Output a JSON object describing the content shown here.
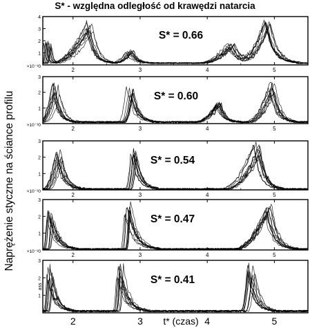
{
  "title": "S* - względna odległość od krawędzi natarcia",
  "ylabel": "Naprężenie styczne na ściance profilu",
  "xlabel": "t* (czas)",
  "chart_data": {
    "type": "line",
    "title": "S* - względna odległość od krawędzi natarcia",
    "ylabel": "Naprężenie styczne na ściance profilu",
    "xlabel": "t* (czas)",
    "xlim": [
      1.55,
      5.5
    ],
    "x_ticks": [
      "2",
      "3",
      "4",
      "5"
    ],
    "x_tick_values": [
      2,
      3,
      4,
      5
    ],
    "y_tick_values": [
      0,
      1,
      2,
      3
    ],
    "ylim": [
      0,
      3
    ],
    "panel_y_tick_labels": [
      "0",
      "1",
      "2",
      "3"
    ],
    "panel_y_unit_label": "×10⁻³",
    "bottom_y_axis_label": "ass",
    "panels": [
      {
        "label": "S* = 0.66",
        "y_ticks": [
          "0",
          "1",
          "2",
          "3",
          "4"
        ],
        "ylim": [
          0,
          4
        ],
        "peaks": [
          {
            "x": 1.62,
            "y": 2.0,
            "rise": 0.05,
            "width": 0.1
          },
          {
            "x": 2.25,
            "y": 3.4,
            "rise": 0.55,
            "width": 0.35
          },
          {
            "x": 2.85,
            "y": 1.0,
            "rise": 0.25,
            "width": 0.3
          },
          {
            "x": 4.35,
            "y": 1.6,
            "rise": 0.45,
            "width": 0.45
          },
          {
            "x": 4.9,
            "y": 3.3,
            "rise": 0.4,
            "width": 0.45
          }
        ],
        "base": 0.15
      },
      {
        "label": "S* = 0.60",
        "y_ticks": [
          "0",
          "1",
          "2",
          "3"
        ],
        "ylim": [
          0,
          3
        ],
        "peaks": [
          {
            "x": 1.75,
            "y": 2.4,
            "rise": 0.2,
            "width": 0.3
          },
          {
            "x": 2.85,
            "y": 2.3,
            "rise": 0.12,
            "width": 0.35
          },
          {
            "x": 4.15,
            "y": 1.2,
            "rise": 0.35,
            "width": 0.3
          },
          {
            "x": 4.95,
            "y": 2.5,
            "rise": 0.35,
            "width": 0.35
          }
        ],
        "base": 0.1
      },
      {
        "label": "S* = 0.54",
        "y_ticks": [
          "0",
          "1",
          "2",
          "3"
        ],
        "ylim": [
          0,
          3
        ],
        "peaks": [
          {
            "x": 1.8,
            "y": 2.3,
            "rise": 0.2,
            "width": 0.35
          },
          {
            "x": 2.9,
            "y": 2.3,
            "rise": 0.08,
            "width": 0.35
          },
          {
            "x": 4.75,
            "y": 2.7,
            "rise": 0.5,
            "width": 0.35
          }
        ],
        "base": 0.05
      },
      {
        "label": "S* = 0.47",
        "y_ticks": [
          "0",
          "1",
          "2",
          "3"
        ],
        "ylim": [
          0,
          3
        ],
        "peaks": [
          {
            "x": 1.65,
            "y": 2.3,
            "rise": 0.05,
            "width": 0.4
          },
          {
            "x": 2.8,
            "y": 2.7,
            "rise": 0.05,
            "width": 0.45
          },
          {
            "x": 4.9,
            "y": 2.5,
            "rise": 0.5,
            "width": 0.4
          }
        ],
        "base": 0.05
      },
      {
        "label": "S* = 0.41",
        "y_ticks": [
          "0",
          "1",
          "2",
          "3"
        ],
        "ylim": [
          0,
          3
        ],
        "peaks": [
          {
            "x": 1.65,
            "y": 2.4,
            "rise": 0.05,
            "width": 0.35
          },
          {
            "x": 2.7,
            "y": 2.6,
            "rise": 0.05,
            "width": 0.4
          },
          {
            "x": 4.65,
            "y": 2.6,
            "rise": 0.1,
            "width": 0.35
          }
        ],
        "base": 0.1
      }
    ],
    "series_count_per_panel": 10
  }
}
